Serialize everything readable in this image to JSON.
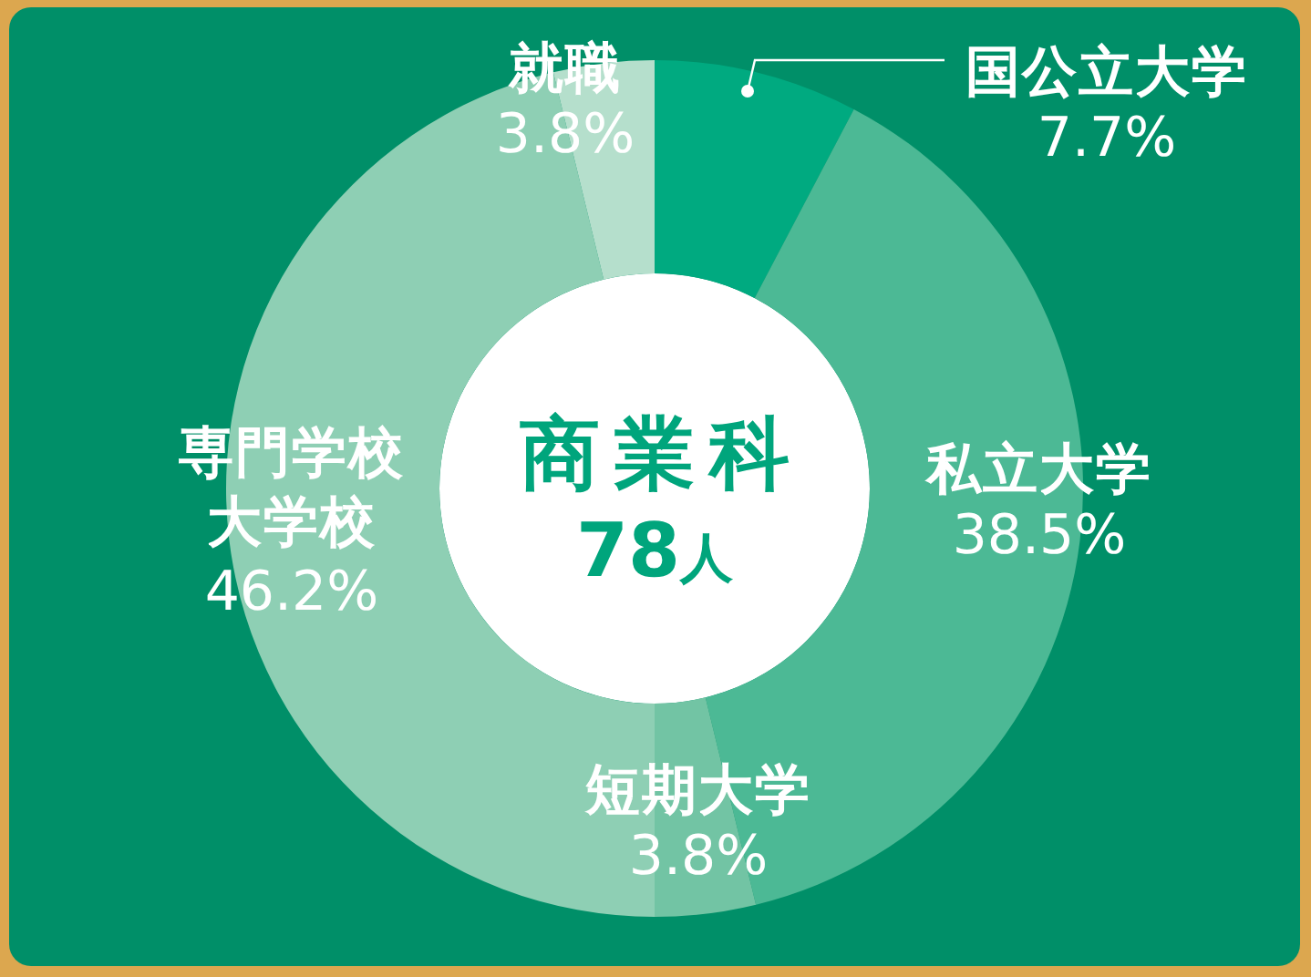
{
  "chart_data": {
    "type": "donut",
    "title": "商業科",
    "subtitle": "78人",
    "categories": [
      "国公立大学",
      "私立大学",
      "短期大学",
      "専門学校大学校",
      "就職"
    ],
    "values": [
      7.7,
      38.5,
      3.8,
      46.2,
      3.8
    ],
    "colors": [
      "#00aa80",
      "#4cb995",
      "#72c4a4",
      "#8ecfb4",
      "#b5dfcc"
    ],
    "value_labels": [
      "7.7%",
      "38.5%",
      "3.8%",
      "46.2%",
      "3.8%"
    ]
  }
}
